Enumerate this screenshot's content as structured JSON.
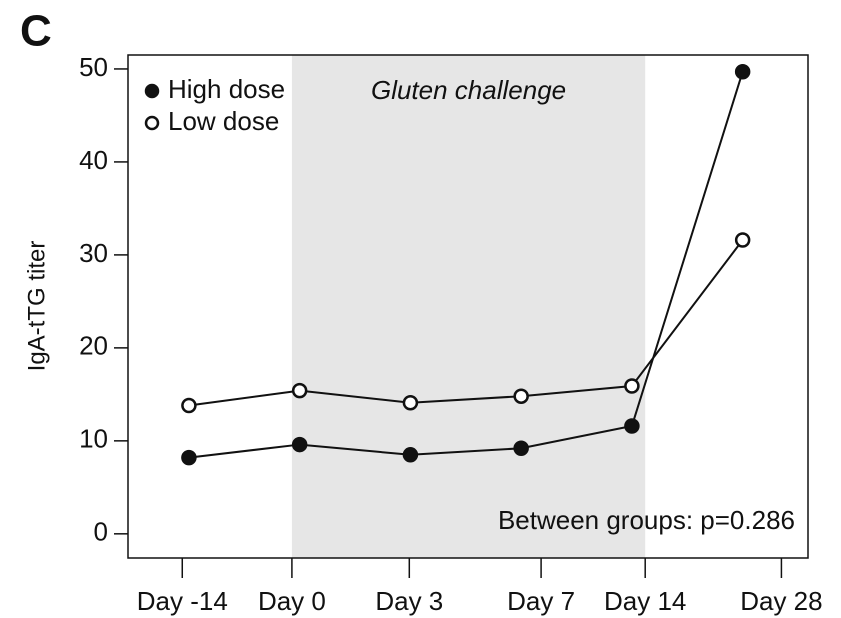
{
  "chart_data": {
    "type": "line",
    "panel_label": "C",
    "y_label": "IgA-tTG titer",
    "annotation": "Between groups: p=0.286",
    "shaded_region": {
      "label": "Gluten challenge",
      "x": [
        0.93,
        4.12
      ],
      "color": "#e6e6e6"
    },
    "x": [
      0,
      1,
      2,
      3,
      4,
      5
    ],
    "xlim": [
      -0.55,
      5.59
    ],
    "xticks": [
      {
        "value": -0.06,
        "label": "Day -14"
      },
      {
        "value": 0.93,
        "label": "Day 0"
      },
      {
        "value": 1.99,
        "label": "Day 3"
      },
      {
        "value": 3.18,
        "label": "Day 7"
      },
      {
        "value": 4.12,
        "label": "Day 14"
      },
      {
        "value": 5.35,
        "label": "Day 28"
      }
    ],
    "ylim": [
      -2.6,
      51.5
    ],
    "yticks": [
      0,
      10,
      20,
      30,
      40,
      50
    ],
    "legend": "top-left",
    "series": [
      {
        "name": "High dose",
        "color": "#111111",
        "marker": "filled",
        "values": [
          8.2,
          9.6,
          8.5,
          9.2,
          11.6,
          49.7
        ]
      },
      {
        "name": "Low dose",
        "color": "#111111",
        "marker": "open",
        "values": [
          13.8,
          15.4,
          14.1,
          14.8,
          15.9,
          31.6
        ]
      }
    ]
  }
}
